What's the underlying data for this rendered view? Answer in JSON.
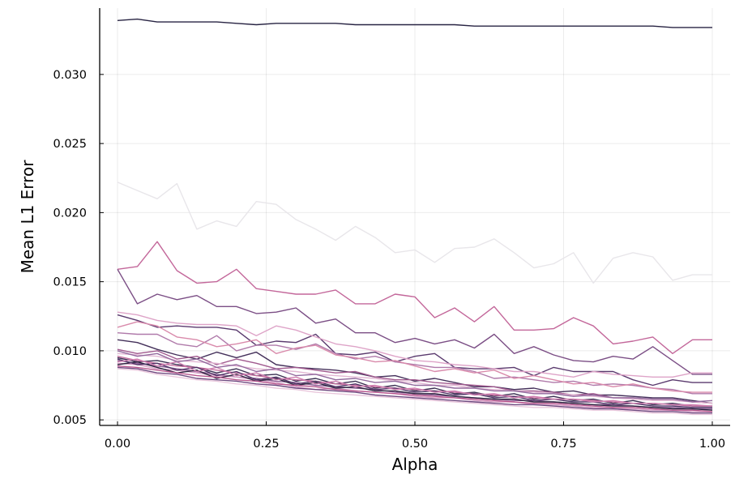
{
  "chart_data": {
    "type": "line",
    "xlabel": "Alpha",
    "ylabel": "Mean L1 Error",
    "xlim": [
      -0.03,
      1.03
    ],
    "ylim": [
      0.0046,
      0.0348
    ],
    "xticks": [
      0.0,
      0.25,
      0.5,
      0.75,
      1.0
    ],
    "xtick_labels": [
      "0.00",
      "0.25",
      "0.50",
      "0.75",
      "1.00"
    ],
    "yticks": [
      0.005,
      0.01,
      0.015,
      0.02,
      0.025,
      0.03
    ],
    "ytick_labels": [
      "0.005",
      "0.010",
      "0.015",
      "0.020",
      "0.025",
      "0.030"
    ],
    "grid": true,
    "legend": "none",
    "x": [
      0.0,
      0.0333,
      0.0667,
      0.1,
      0.1333,
      0.1667,
      0.2,
      0.2333,
      0.2667,
      0.3,
      0.3333,
      0.3667,
      0.4,
      0.4333,
      0.4667,
      0.5,
      0.5333,
      0.5667,
      0.6,
      0.6333,
      0.6667,
      0.7,
      0.7333,
      0.7667,
      0.8,
      0.8333,
      0.8667,
      0.9,
      0.9333,
      0.9667,
      1.0
    ],
    "series": [
      {
        "color": "#e8e6ea",
        "values": [
          0.0222,
          0.0216,
          0.021,
          0.0221,
          0.0188,
          0.0194,
          0.019,
          0.0208,
          0.0206,
          0.0195,
          0.0188,
          0.018,
          0.019,
          0.0182,
          0.0171,
          0.0173,
          0.0164,
          0.0174,
          0.0175,
          0.0181,
          0.0171,
          0.016,
          0.0163,
          0.0171,
          0.0149,
          0.0167,
          0.0171,
          0.0168,
          0.0151,
          0.0155,
          0.0155
        ]
      },
      {
        "color": "#c3679a",
        "values": [
          0.0159,
          0.0161,
          0.0179,
          0.0158,
          0.0149,
          0.015,
          0.0159,
          0.0145,
          0.0143,
          0.0141,
          0.0141,
          0.0144,
          0.0134,
          0.0134,
          0.0141,
          0.0139,
          0.0124,
          0.0131,
          0.0121,
          0.0132,
          0.0115,
          0.0115,
          0.0116,
          0.0124,
          0.0118,
          0.0105,
          0.0107,
          0.011,
          0.0098,
          0.0108,
          0.0108
        ]
      },
      {
        "color": "#7b4e85",
        "values": [
          0.0159,
          0.0134,
          0.0141,
          0.0137,
          0.014,
          0.0132,
          0.0132,
          0.0127,
          0.0128,
          0.0131,
          0.012,
          0.0123,
          0.0113,
          0.0113,
          0.0106,
          0.0109,
          0.0105,
          0.0108,
          0.0102,
          0.0112,
          0.0098,
          0.0103,
          0.0097,
          0.0093,
          0.0092,
          0.0096,
          0.0094,
          0.0103,
          0.0093,
          0.0083,
          0.0083
        ]
      },
      {
        "color": "#282443",
        "values": [
          0.0339,
          0.034,
          0.0338,
          0.0338,
          0.0338,
          0.0338,
          0.0337,
          0.0336,
          0.0337,
          0.0337,
          0.0337,
          0.0337,
          0.0336,
          0.0336,
          0.0336,
          0.0336,
          0.0336,
          0.0336,
          0.0335,
          0.0335,
          0.0335,
          0.0335,
          0.0335,
          0.0335,
          0.0335,
          0.0335,
          0.0335,
          0.0335,
          0.0334,
          0.0334,
          0.0334
        ]
      },
      {
        "color": "#5a3a6e",
        "values": [
          0.0126,
          0.0122,
          0.0117,
          0.0118,
          0.0117,
          0.0117,
          0.0115,
          0.0104,
          0.0107,
          0.0106,
          0.0112,
          0.0098,
          0.0097,
          0.0099,
          0.0092,
          0.0096,
          0.0098,
          0.0088,
          0.0087,
          0.0087,
          0.0088,
          0.0082,
          0.0088,
          0.0085,
          0.0085,
          0.0085,
          0.0079,
          0.0075,
          0.0079,
          0.0077,
          0.0077
        ]
      },
      {
        "color": "#dea4c8",
        "values": [
          0.0128,
          0.0126,
          0.0122,
          0.012,
          0.0119,
          0.0119,
          0.0118,
          0.0111,
          0.0118,
          0.0115,
          0.011,
          0.0105,
          0.0103,
          0.01,
          0.0096,
          0.0093,
          0.0092,
          0.009,
          0.0089,
          0.0087,
          0.0085,
          0.0085,
          0.0083,
          0.0081,
          0.0085,
          0.0083,
          0.0082,
          0.0081,
          0.0081,
          0.0084,
          0.0084
        ]
      },
      {
        "color": "#b07aaa",
        "values": [
          0.0113,
          0.0112,
          0.0112,
          0.0105,
          0.0103,
          0.0111,
          0.01,
          0.0104,
          0.0104,
          0.0101,
          0.0105,
          0.0098,
          0.0094,
          0.0096,
          0.0092,
          0.009,
          0.0088,
          0.0088,
          0.0085,
          0.008,
          0.0081,
          0.0079,
          0.0077,
          0.0078,
          0.0075,
          0.0076,
          0.0075,
          0.0073,
          0.0072,
          0.0069,
          0.0069
        ]
      },
      {
        "color": "#d98aab",
        "values": [
          0.0117,
          0.0121,
          0.0118,
          0.011,
          0.0108,
          0.0103,
          0.0105,
          0.0108,
          0.0098,
          0.0102,
          0.0104,
          0.0097,
          0.0095,
          0.0092,
          0.0093,
          0.0089,
          0.0085,
          0.0087,
          0.0084,
          0.0086,
          0.008,
          0.0082,
          0.0079,
          0.0076,
          0.0077,
          0.0074,
          0.0076,
          0.0073,
          0.0071,
          0.007,
          0.007
        ]
      },
      {
        "color": "#44305a",
        "values": [
          0.0108,
          0.0106,
          0.0101,
          0.0097,
          0.0094,
          0.0099,
          0.0095,
          0.0099,
          0.009,
          0.0088,
          0.0087,
          0.0086,
          0.0084,
          0.0081,
          0.0082,
          0.0078,
          0.008,
          0.0077,
          0.0074,
          0.0074,
          0.0072,
          0.0073,
          0.007,
          0.0071,
          0.0068,
          0.0068,
          0.0067,
          0.0066,
          0.0066,
          0.0064,
          0.0062
        ]
      },
      {
        "color": "#a15a8f",
        "values": [
          0.0101,
          0.0098,
          0.01,
          0.0094,
          0.0096,
          0.009,
          0.0094,
          0.0091,
          0.0087,
          0.0088,
          0.0086,
          0.0084,
          0.0085,
          0.0081,
          0.0079,
          0.0079,
          0.0077,
          0.0076,
          0.0075,
          0.0074,
          0.0071,
          0.0071,
          0.007,
          0.0068,
          0.0069,
          0.0066,
          0.0066,
          0.0065,
          0.0065,
          0.0063,
          0.0062
        ]
      },
      {
        "color": "#e3b8d4",
        "values": [
          0.0098,
          0.0097,
          0.0096,
          0.0093,
          0.0092,
          0.0091,
          0.0089,
          0.0087,
          0.0086,
          0.0085,
          0.0083,
          0.0082,
          0.0081,
          0.008,
          0.0078,
          0.0077,
          0.0075,
          0.0075,
          0.0073,
          0.0072,
          0.0071,
          0.007,
          0.0069,
          0.0068,
          0.0067,
          0.0066,
          0.0065,
          0.0064,
          0.0064,
          0.0063,
          0.0062
        ]
      },
      {
        "color": "#3b2f52",
        "values": [
          0.0095,
          0.0092,
          0.0093,
          0.009,
          0.0088,
          0.0084,
          0.0087,
          0.0082,
          0.0083,
          0.0078,
          0.008,
          0.0076,
          0.0078,
          0.0073,
          0.0075,
          0.0071,
          0.0073,
          0.0069,
          0.007,
          0.0067,
          0.0069,
          0.0065,
          0.0067,
          0.0064,
          0.0065,
          0.0062,
          0.0064,
          0.0061,
          0.0062,
          0.006,
          0.006
        ]
      },
      {
        "color": "#c66fa0",
        "values": [
          0.0096,
          0.0093,
          0.0091,
          0.0089,
          0.0088,
          0.0086,
          0.0084,
          0.0082,
          0.008,
          0.0079,
          0.0078,
          0.0076,
          0.0075,
          0.0074,
          0.0073,
          0.0072,
          0.0071,
          0.007,
          0.0069,
          0.0068,
          0.0067,
          0.0066,
          0.0065,
          0.0065,
          0.0064,
          0.0063,
          0.0062,
          0.0062,
          0.0061,
          0.006,
          0.006
        ]
      },
      {
        "color": "#8e6197",
        "values": [
          0.0093,
          0.0091,
          0.0089,
          0.0087,
          0.0085,
          0.0083,
          0.0081,
          0.008,
          0.0078,
          0.0077,
          0.0075,
          0.0074,
          0.0073,
          0.0072,
          0.007,
          0.0069,
          0.0068,
          0.0067,
          0.0066,
          0.0065,
          0.0064,
          0.0064,
          0.0063,
          0.0062,
          0.0061,
          0.0061,
          0.006,
          0.0059,
          0.0059,
          0.0058,
          0.0058
        ]
      },
      {
        "color": "#d7a0c6",
        "values": [
          0.0091,
          0.009,
          0.0087,
          0.0086,
          0.0084,
          0.0082,
          0.0081,
          0.0079,
          0.0077,
          0.0074,
          0.0072,
          0.0073,
          0.0071,
          0.007,
          0.0069,
          0.0067,
          0.0066,
          0.0066,
          0.0064,
          0.0063,
          0.0063,
          0.0061,
          0.0061,
          0.006,
          0.0059,
          0.0058,
          0.0058,
          0.0057,
          0.0057,
          0.0056,
          0.0056
        ]
      },
      {
        "color": "#2e2540",
        "values": [
          0.009,
          0.0092,
          0.0088,
          0.0084,
          0.0086,
          0.008,
          0.0083,
          0.0078,
          0.008,
          0.0075,
          0.0077,
          0.0073,
          0.0074,
          0.0071,
          0.0071,
          0.0069,
          0.0069,
          0.0067,
          0.0066,
          0.0065,
          0.0065,
          0.0063,
          0.0063,
          0.0062,
          0.0061,
          0.006,
          0.006,
          0.0059,
          0.0058,
          0.0058,
          0.0057
        ]
      },
      {
        "color": "#b8568e",
        "values": [
          0.0089,
          0.0088,
          0.0086,
          0.0084,
          0.0082,
          0.0081,
          0.0079,
          0.0078,
          0.0076,
          0.0075,
          0.0074,
          0.0072,
          0.0071,
          0.007,
          0.0069,
          0.0068,
          0.0067,
          0.0066,
          0.0065,
          0.0064,
          0.0063,
          0.0062,
          0.0062,
          0.0061,
          0.006,
          0.0059,
          0.0059,
          0.0058,
          0.0057,
          0.0057,
          0.0056
        ]
      },
      {
        "color": "#6f4a80",
        "values": [
          0.0088,
          0.0087,
          0.0084,
          0.0083,
          0.008,
          0.0079,
          0.0078,
          0.0076,
          0.0075,
          0.0073,
          0.0072,
          0.0071,
          0.007,
          0.0068,
          0.0067,
          0.0066,
          0.0065,
          0.0064,
          0.0063,
          0.0062,
          0.0061,
          0.0061,
          0.006,
          0.0059,
          0.0058,
          0.0058,
          0.0057,
          0.0056,
          0.0056,
          0.0055,
          0.0055
        ]
      },
      {
        "color": "#e9c7dc",
        "values": [
          0.0087,
          0.0086,
          0.0083,
          0.0081,
          0.0079,
          0.0078,
          0.0076,
          0.0075,
          0.0073,
          0.0072,
          0.007,
          0.0069,
          0.0068,
          0.0067,
          0.0066,
          0.0065,
          0.0064,
          0.0063,
          0.0062,
          0.0061,
          0.006,
          0.0059,
          0.0059,
          0.0058,
          0.0057,
          0.0057,
          0.0056,
          0.0055,
          0.0055,
          0.0054,
          0.0054
        ]
      },
      {
        "color": "#4f3566",
        "values": [
          0.0094,
          0.009,
          0.0091,
          0.0086,
          0.0088,
          0.0082,
          0.0085,
          0.0079,
          0.0081,
          0.0076,
          0.0078,
          0.0074,
          0.0076,
          0.0072,
          0.0073,
          0.007,
          0.0071,
          0.0068,
          0.0069,
          0.0066,
          0.0067,
          0.0064,
          0.0065,
          0.0063,
          0.0063,
          0.0061,
          0.0062,
          0.006,
          0.006,
          0.0059,
          0.0059
        ]
      },
      {
        "color": "#cf7fb0",
        "values": [
          0.0092,
          0.0094,
          0.0089,
          0.0092,
          0.0085,
          0.0088,
          0.0082,
          0.0084,
          0.0079,
          0.0081,
          0.0076,
          0.0078,
          0.0074,
          0.0075,
          0.0072,
          0.0073,
          0.007,
          0.0071,
          0.0068,
          0.0069,
          0.0066,
          0.0067,
          0.0065,
          0.0065,
          0.0063,
          0.0064,
          0.0062,
          0.0062,
          0.0061,
          0.0061,
          0.006
        ]
      },
      {
        "color": "#936a9e",
        "values": [
          0.01,
          0.0096,
          0.0098,
          0.0092,
          0.0094,
          0.0088,
          0.009,
          0.0085,
          0.0087,
          0.0082,
          0.0083,
          0.0079,
          0.008,
          0.0077,
          0.0078,
          0.0075,
          0.0075,
          0.0073,
          0.0073,
          0.0071,
          0.0071,
          0.0069,
          0.0069,
          0.0067,
          0.0068,
          0.0066,
          0.0066,
          0.0065,
          0.0065,
          0.0063,
          0.0064
        ]
      }
    ]
  }
}
